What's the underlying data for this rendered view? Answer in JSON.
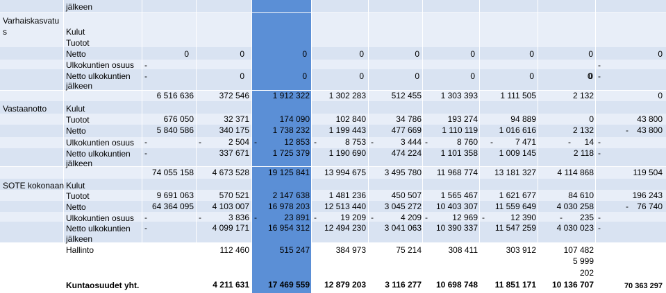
{
  "rows_top": {
    "jalkeen_a": "jälkeen",
    "group1": [
      "Varhaiskasvatu",
      "s"
    ],
    "kulut": "Kulut",
    "tuotot": "Tuotot",
    "netto": "Netto",
    "ulko": "Ulkokuntien osuus",
    "netto_ulko": "Netto ulkokuntien",
    "jalkeen": "jälkeen",
    "dash": "-"
  },
  "varhais": {
    "netto_vals": [
      "0",
      "0",
      "0",
      "0",
      "0",
      "0",
      "0",
      "0",
      "0"
    ],
    "ulko_prefix": "-",
    "ulko_suffix": "-",
    "nu_prefix": "-",
    "nu_vals": [
      "0",
      "0",
      "0",
      "0",
      "0",
      "0",
      "0",
      "0"
    ],
    "nu_suffix": "-"
  },
  "vastaanotto": {
    "label": "Vastaanotto",
    "kulut": [
      "6 516 636",
      "372 546",
      "1 912 322",
      "1 302 283",
      "512 455",
      "1 303 393",
      "1 111 505",
      "2 132",
      "0"
    ],
    "tuotot": [
      "676 050",
      "32 371",
      "174 090",
      "102 840",
      "34 786",
      "193 274",
      "94 889",
      "0",
      "43 800"
    ],
    "netto": [
      "5 840 586",
      "340 175",
      "1 738 232",
      "1 199 443",
      "477 669",
      "1 110 119",
      "1 016 616",
      "2 132",
      "43 800"
    ],
    "netto_neg": "-",
    "ulko": [
      "2 504",
      "12 853",
      "8 753",
      "3 444",
      "8 760",
      "7 471",
      "14"
    ],
    "nu": [
      "337 671",
      "1 725 379",
      "1 190 690",
      "474 224",
      "1 101 358",
      "1 009 145",
      "2 118"
    ]
  },
  "sote": {
    "label": "SOTE kokonaan",
    "kulut": [
      "74 055 158",
      "4 673 528",
      "19 125 841",
      "13 994 675",
      "3 495 780",
      "11 968 774",
      "13 181 327",
      "4 114 868",
      "119 504"
    ],
    "tuotot": [
      "9 691 063",
      "570 521",
      "2 147 638",
      "1 481 236",
      "450 507",
      "1 565 467",
      "1 621 677",
      "84 610",
      "196 243"
    ],
    "netto": [
      "64 364 095",
      "4 103 007",
      "16 978 203",
      "12 513 440",
      "3 045 272",
      "10 403 307",
      "11 559 649",
      "4 030 258",
      "76 740"
    ],
    "netto_neg": "-",
    "ulko": [
      "3 836",
      "23 891",
      "19 209",
      "4 209",
      "12 969",
      "12 390",
      "235"
    ],
    "nu": [
      "4 099 171",
      "16 954 312",
      "12 494 230",
      "3 041 063",
      "10 390 337",
      "11 547 259",
      "4 030 023"
    ]
  },
  "hallinto": {
    "label": "Hallinto",
    "vals": [
      "112 460",
      "515 247",
      "384 973",
      "75 214",
      "308 411",
      "303 912",
      "107 482"
    ],
    "extra1": "5 999",
    "extra2": "202"
  },
  "kuntaosuudet": {
    "label": "Kuntaosuudet yht.",
    "vals": [
      "4 211 631",
      "17 469 559",
      "12 879 203",
      "3 116 277",
      "10 698 748",
      "11 851 171",
      "10 136 707"
    ],
    "last": "70 363 297"
  }
}
